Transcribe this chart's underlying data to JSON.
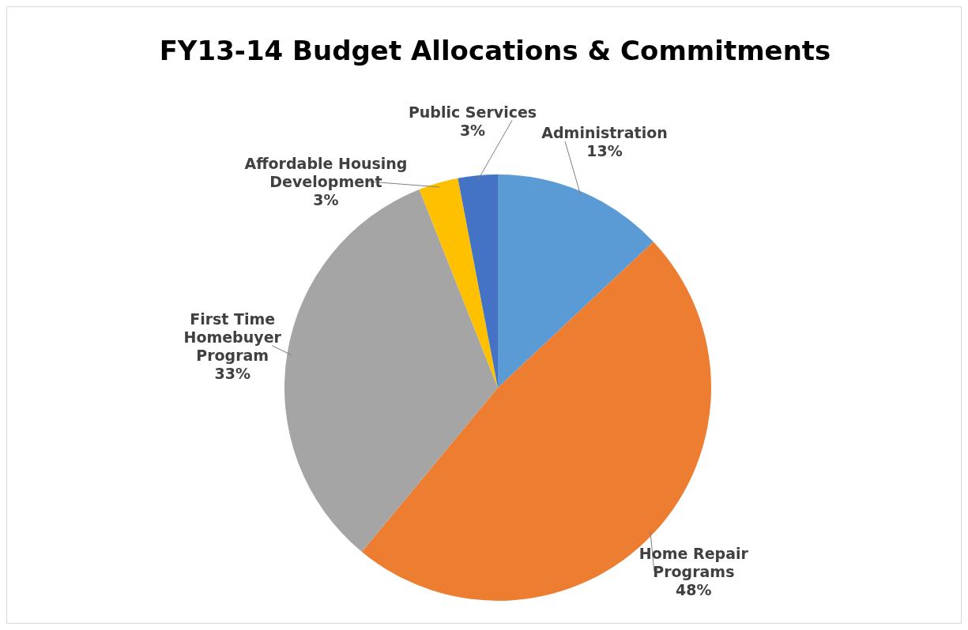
{
  "chart_data": {
    "type": "pie",
    "title": "FY13-14 Budget Allocations & Commitments",
    "categories": [
      "Administration",
      "Home Repair Programs",
      "First Time Homebuyer Program",
      "Affordable Housing Development",
      "Public Services"
    ],
    "values": [
      13,
      48,
      33,
      3,
      3
    ],
    "colors": [
      "#5b9bd5",
      "#ed7d31",
      "#a5a5a5",
      "#ffc000",
      "#4472c4"
    ],
    "value_labels": [
      "13%",
      "48%",
      "33%",
      "3%",
      "3%"
    ]
  }
}
